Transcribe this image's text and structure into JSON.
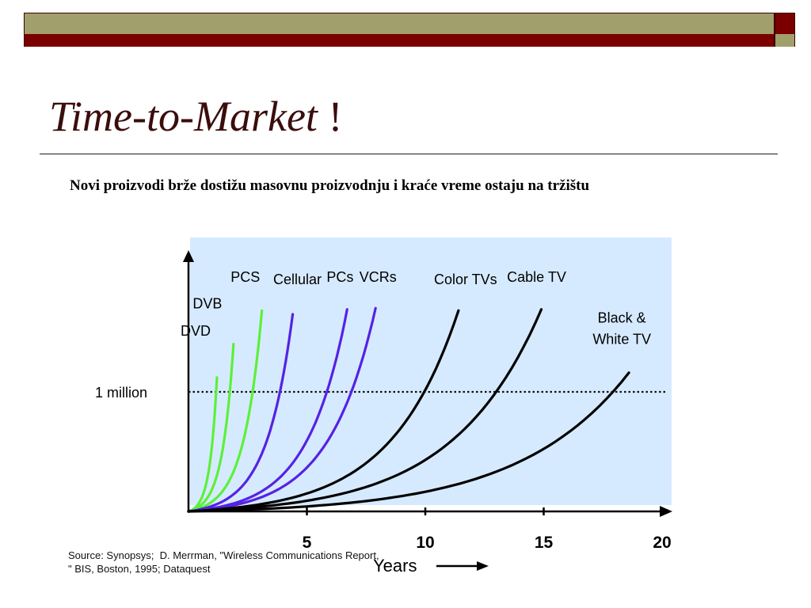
{
  "slide": {
    "title": "Time-to-Market",
    "title_suffix": "!",
    "subtitle": "Novi proizvodi brže dostižu masovnu proizvodnju i kraće vreme ostaju na tržištu",
    "source": "Source: Synopsys;  D. Merrman, \"Wireless Communications Report,\n\" BIS, Boston, 1995; Dataquest"
  },
  "colors": {
    "olive": "#a19f6c",
    "maroon": "#7a0000",
    "plot_background": "#d6eaff",
    "green_series": "#5cf03a",
    "purple_series": "#5522e6",
    "black_series": "#000000"
  },
  "chart_data": {
    "type": "line",
    "xlabel": "Years",
    "xlim": [
      -0.1,
      20.9
    ],
    "ylim": [
      0,
      1.9
    ],
    "x_ticks": [
      {
        "value": 5,
        "label": "5"
      },
      {
        "value": 10,
        "label": "10"
      },
      {
        "value": 15,
        "label": "15"
      },
      {
        "value": 20,
        "label": "20"
      }
    ],
    "reference_line": {
      "value": 1,
      "label": "1 million",
      "style": "dotted"
    },
    "series": [
      {
        "name": "DVD",
        "color": "#5cf03a",
        "end_x": 1.2,
        "end_y": 1.12,
        "label_x": 0.3,
        "label_y": 1.47
      },
      {
        "name": "DVB",
        "color": "#5cf03a",
        "end_x": 1.9,
        "end_y": 1.4,
        "label_x": 0.8,
        "label_y": 1.7
      },
      {
        "name": "PCS",
        "color": "#5cf03a",
        "end_x": 3.1,
        "end_y": 1.68,
        "label_x": 2.4,
        "label_y": 1.92
      },
      {
        "name": "Cellular",
        "color": "#5522e6",
        "end_x": 4.4,
        "end_y": 1.65,
        "label_x": 4.6,
        "label_y": 1.9
      },
      {
        "name": "PCs",
        "color": "#5522e6",
        "end_x": 6.7,
        "end_y": 1.69,
        "label_x": 6.4,
        "label_y": 1.92
      },
      {
        "name": "VCRs",
        "color": "#5522e6",
        "end_x": 7.9,
        "end_y": 1.7,
        "label_x": 8.0,
        "label_y": 1.92
      },
      {
        "name": "Color TVs",
        "color": "#000000",
        "end_x": 11.4,
        "end_y": 1.68,
        "label_x": 11.7,
        "label_y": 1.9
      },
      {
        "name": "Cable TV",
        "color": "#000000",
        "end_x": 14.9,
        "end_y": 1.69,
        "label_x": 14.7,
        "label_y": 1.92
      },
      {
        "name": "Black &",
        "name_line2": "White TV",
        "color": "#000000",
        "end_x": 18.6,
        "end_y": 1.16,
        "label_x": 18.3,
        "label_y": 1.58
      }
    ]
  }
}
